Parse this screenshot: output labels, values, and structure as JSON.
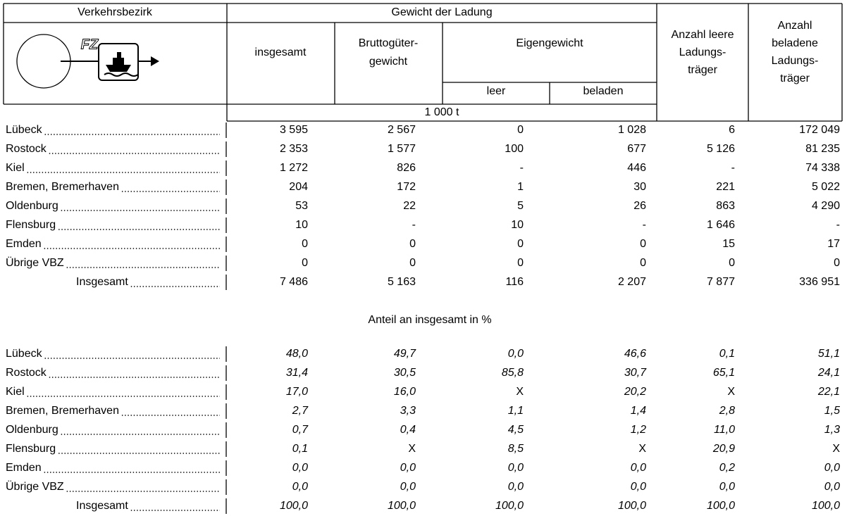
{
  "header": {
    "region": "Verkehrsbezirk",
    "icon_label": "FZ",
    "group": "Gewicht der Ladung",
    "col_total": "insgesamt",
    "col_gross": [
      "Bruttogüter-",
      "gewicht"
    ],
    "col_own": "Eigengewicht",
    "col_own_empty": "leer",
    "col_own_loaded": "beladen",
    "col_empty_units": [
      "Anzahl leere",
      "Ladungs-",
      "träger"
    ],
    "col_loaded_units": [
      "Anzahl",
      "beladene",
      "Ladungs-",
      "träger"
    ],
    "unit": "1 000 t"
  },
  "blocks": [
    {
      "rows": [
        [
          "Lübeck",
          "3 595",
          "2 567",
          "0",
          "1 028",
          "6",
          "172 049"
        ],
        [
          "Rostock",
          "2 353",
          "1 577",
          "100",
          "677",
          "5 126",
          "81 235"
        ],
        [
          "Kiel",
          "1 272",
          "826",
          "-",
          "446",
          "-",
          "74 338"
        ],
        [
          "Bremen, Bremerhaven",
          "204",
          "172",
          "1",
          "30",
          "221",
          "5 022"
        ],
        [
          "Oldenburg",
          "53",
          "22",
          "5",
          "26",
          "863",
          "4 290"
        ],
        [
          "Flensburg",
          "10",
          "-",
          "10",
          "-",
          "1 646",
          "-"
        ],
        [
          "Emden",
          "0",
          "0",
          "0",
          "0",
          "15",
          "17"
        ],
        [
          "Übrige VBZ",
          "0",
          "0",
          "0",
          "0",
          "0",
          "0"
        ],
        [
          "Insgesamt",
          "7 486",
          "5 163",
          "116",
          "2 207",
          "7 877",
          "336 951"
        ]
      ]
    },
    {
      "title": "Anteil an insgesamt in %",
      "rows": [
        [
          "Lübeck",
          "48,0",
          "49,7",
          "0,0",
          "46,6",
          "0,1",
          "51,1"
        ],
        [
          "Rostock",
          "31,4",
          "30,5",
          "85,8",
          "30,7",
          "65,1",
          "24,1"
        ],
        [
          "Kiel",
          "17,0",
          "16,0",
          "X",
          "20,2",
          "X",
          "22,1"
        ],
        [
          "Bremen, Bremerhaven",
          "2,7",
          "3,3",
          "1,1",
          "1,4",
          "2,8",
          "1,5"
        ],
        [
          "Oldenburg",
          "0,7",
          "0,4",
          "4,5",
          "1,2",
          "11,0",
          "1,3"
        ],
        [
          "Flensburg",
          "0,1",
          "X",
          "8,5",
          "X",
          "20,9",
          "X"
        ],
        [
          "Emden",
          "0,0",
          "0,0",
          "0,0",
          "0,0",
          "0,2",
          "0,0"
        ],
        [
          "Übrige VBZ",
          "0,0",
          "0,0",
          "0,0",
          "0,0",
          "0,0",
          "0,0"
        ],
        [
          "Insgesamt",
          "100,0",
          "100,0",
          "100,0",
          "100,0",
          "100,0",
          "100,0"
        ]
      ]
    }
  ]
}
